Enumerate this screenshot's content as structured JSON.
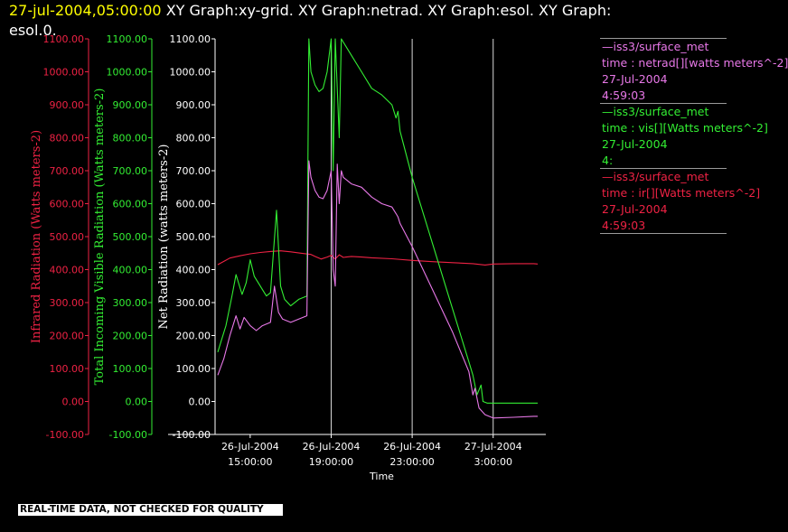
{
  "header": {
    "timestamp": "27-jul-2004,05:00:00",
    "line1_rest": " XY Graph:xy-grid.  XY Graph:netrad.  XY Graph:esol.  XY Graph:",
    "line2": "esol.0."
  },
  "legend": [
    {
      "source": "—iss3/surface_met",
      "desc": "time : netrad[][watts meters^-2]",
      "date": "27-Jul-2004",
      "time": "4:59:03",
      "color": "#e878e8"
    },
    {
      "source": "—iss3/surface_met",
      "desc": "time : vis[][Watts meters^-2]",
      "date": "27-Jul-2004",
      "time": "4:",
      "color": "#33ee33"
    },
    {
      "source": "—iss3/surface_met",
      "desc": "time : ir[][Watts meters^-2]",
      "date": "27-Jul-2004",
      "time": "4:59:03",
      "color": "#ee2244"
    }
  ],
  "notice": "REAL-TIME DATA, NOT CHECKED FOR QUALITY",
  "chart_data": {
    "type": "line",
    "xlabel": "Time",
    "x_ticks": [
      {
        "date": "26-Jul-2004",
        "time": "15:00:00"
      },
      {
        "date": "26-Jul-2004",
        "time": "19:00:00"
      },
      {
        "date": "26-Jul-2004",
        "time": "23:00:00"
      },
      {
        "date": "27-Jul-2004",
        "time": "3:00:00"
      }
    ],
    "x_range_hours_from_first_tick": [
      -1.6,
      14.6
    ],
    "grid_vertical_at_hours": [
      4,
      8,
      12
    ],
    "ylim": [
      -100,
      1100
    ],
    "y_tick_labels": [
      "1100.00",
      "1000.00",
      "900.00",
      "800.00",
      "700.00",
      "600.00",
      "500.00",
      "400.00",
      "300.00",
      "200.00",
      "100.00",
      "0.00",
      "-100.00"
    ],
    "y_axes": [
      {
        "label": "Infrared Radiation (Watts meters-2)",
        "color": "#ee2244"
      },
      {
        "label": "Total Incoming Visible Radiation (Watts meters-2)",
        "color": "#33ee33"
      },
      {
        "label": "Net Radiation (watts meters-2)",
        "color": "#ffffff"
      }
    ],
    "series": [
      {
        "name": "ir",
        "color": "#ee2244",
        "points": [
          [
            -1.6,
            415
          ],
          [
            -1.3,
            425
          ],
          [
            -1.0,
            435
          ],
          [
            -0.5,
            442
          ],
          [
            0,
            448
          ],
          [
            0.5,
            452
          ],
          [
            1.0,
            455
          ],
          [
            1.5,
            457
          ],
          [
            2.0,
            454
          ],
          [
            2.5,
            450
          ],
          [
            3.0,
            446
          ],
          [
            3.2,
            440
          ],
          [
            3.5,
            432
          ],
          [
            3.8,
            438
          ],
          [
            4.0,
            443
          ],
          [
            4.2,
            432
          ],
          [
            4.4,
            445
          ],
          [
            4.6,
            437
          ],
          [
            5.0,
            440
          ],
          [
            5.5,
            438
          ],
          [
            6.0,
            436
          ],
          [
            7.0,
            433
          ],
          [
            8.0,
            428
          ],
          [
            9.0,
            424
          ],
          [
            10.0,
            421
          ],
          [
            11.0,
            418
          ],
          [
            11.6,
            414
          ],
          [
            12.0,
            417
          ],
          [
            13.0,
            418
          ],
          [
            14.0,
            418
          ],
          [
            14.2,
            417
          ]
        ]
      },
      {
        "name": "vis",
        "color": "#33ee33",
        "points": [
          [
            -1.6,
            150
          ],
          [
            -1.2,
            230
          ],
          [
            -0.9,
            320
          ],
          [
            -0.7,
            385
          ],
          [
            -0.5,
            345
          ],
          [
            -0.4,
            325
          ],
          [
            -0.2,
            360
          ],
          [
            0,
            430
          ],
          [
            0.2,
            380
          ],
          [
            0.4,
            360
          ],
          [
            0.6,
            340
          ],
          [
            0.8,
            320
          ],
          [
            1.0,
            330
          ],
          [
            1.3,
            580
          ],
          [
            1.5,
            350
          ],
          [
            1.7,
            310
          ],
          [
            2.0,
            290
          ],
          [
            2.4,
            310
          ],
          [
            2.8,
            320
          ],
          [
            2.9,
            1100
          ],
          [
            3.0,
            1000
          ],
          [
            3.2,
            960
          ],
          [
            3.4,
            940
          ],
          [
            3.6,
            950
          ],
          [
            3.8,
            1000
          ],
          [
            4.0,
            1100
          ],
          [
            4.1,
            700
          ],
          [
            4.2,
            1100
          ],
          [
            4.4,
            800
          ],
          [
            4.5,
            1100
          ],
          [
            4.6,
            1090
          ],
          [
            5.0,
            1050
          ],
          [
            5.5,
            1000
          ],
          [
            6.0,
            950
          ],
          [
            6.5,
            930
          ],
          [
            7.0,
            900
          ],
          [
            7.2,
            860
          ],
          [
            7.3,
            880
          ],
          [
            7.4,
            820
          ],
          [
            8.0,
            680
          ],
          [
            9.0,
            480
          ],
          [
            10.0,
            280
          ],
          [
            10.8,
            120
          ],
          [
            11.0,
            80
          ],
          [
            11.2,
            20
          ],
          [
            11.4,
            50
          ],
          [
            11.5,
            0
          ],
          [
            11.7,
            -5
          ],
          [
            12.0,
            -5
          ],
          [
            13.0,
            -5
          ],
          [
            14.0,
            -5
          ],
          [
            14.2,
            -5
          ]
        ]
      },
      {
        "name": "netrad",
        "color": "#e878e8",
        "points": [
          [
            -1.6,
            80
          ],
          [
            -1.3,
            130
          ],
          [
            -1.0,
            200
          ],
          [
            -0.7,
            260
          ],
          [
            -0.5,
            220
          ],
          [
            -0.3,
            255
          ],
          [
            0,
            230
          ],
          [
            0.3,
            215
          ],
          [
            0.6,
            230
          ],
          [
            1.0,
            240
          ],
          [
            1.2,
            350
          ],
          [
            1.4,
            270
          ],
          [
            1.6,
            250
          ],
          [
            2.0,
            240
          ],
          [
            2.4,
            250
          ],
          [
            2.8,
            260
          ],
          [
            2.9,
            730
          ],
          [
            3.0,
            680
          ],
          [
            3.2,
            640
          ],
          [
            3.4,
            620
          ],
          [
            3.6,
            615
          ],
          [
            3.8,
            640
          ],
          [
            4.0,
            700
          ],
          [
            4.1,
            400
          ],
          [
            4.2,
            350
          ],
          [
            4.3,
            720
          ],
          [
            4.4,
            600
          ],
          [
            4.5,
            700
          ],
          [
            4.6,
            680
          ],
          [
            5.0,
            660
          ],
          [
            5.5,
            650
          ],
          [
            6.0,
            620
          ],
          [
            6.5,
            600
          ],
          [
            7.0,
            590
          ],
          [
            7.2,
            570
          ],
          [
            7.3,
            560
          ],
          [
            7.4,
            540
          ],
          [
            8.0,
            470
          ],
          [
            9.0,
            340
          ],
          [
            10.0,
            210
          ],
          [
            10.8,
            90
          ],
          [
            11.0,
            20
          ],
          [
            11.1,
            40
          ],
          [
            11.3,
            -20
          ],
          [
            11.6,
            -40
          ],
          [
            12.0,
            -50
          ],
          [
            13.0,
            -48
          ],
          [
            14.0,
            -45
          ],
          [
            14.2,
            -45
          ]
        ]
      }
    ]
  }
}
